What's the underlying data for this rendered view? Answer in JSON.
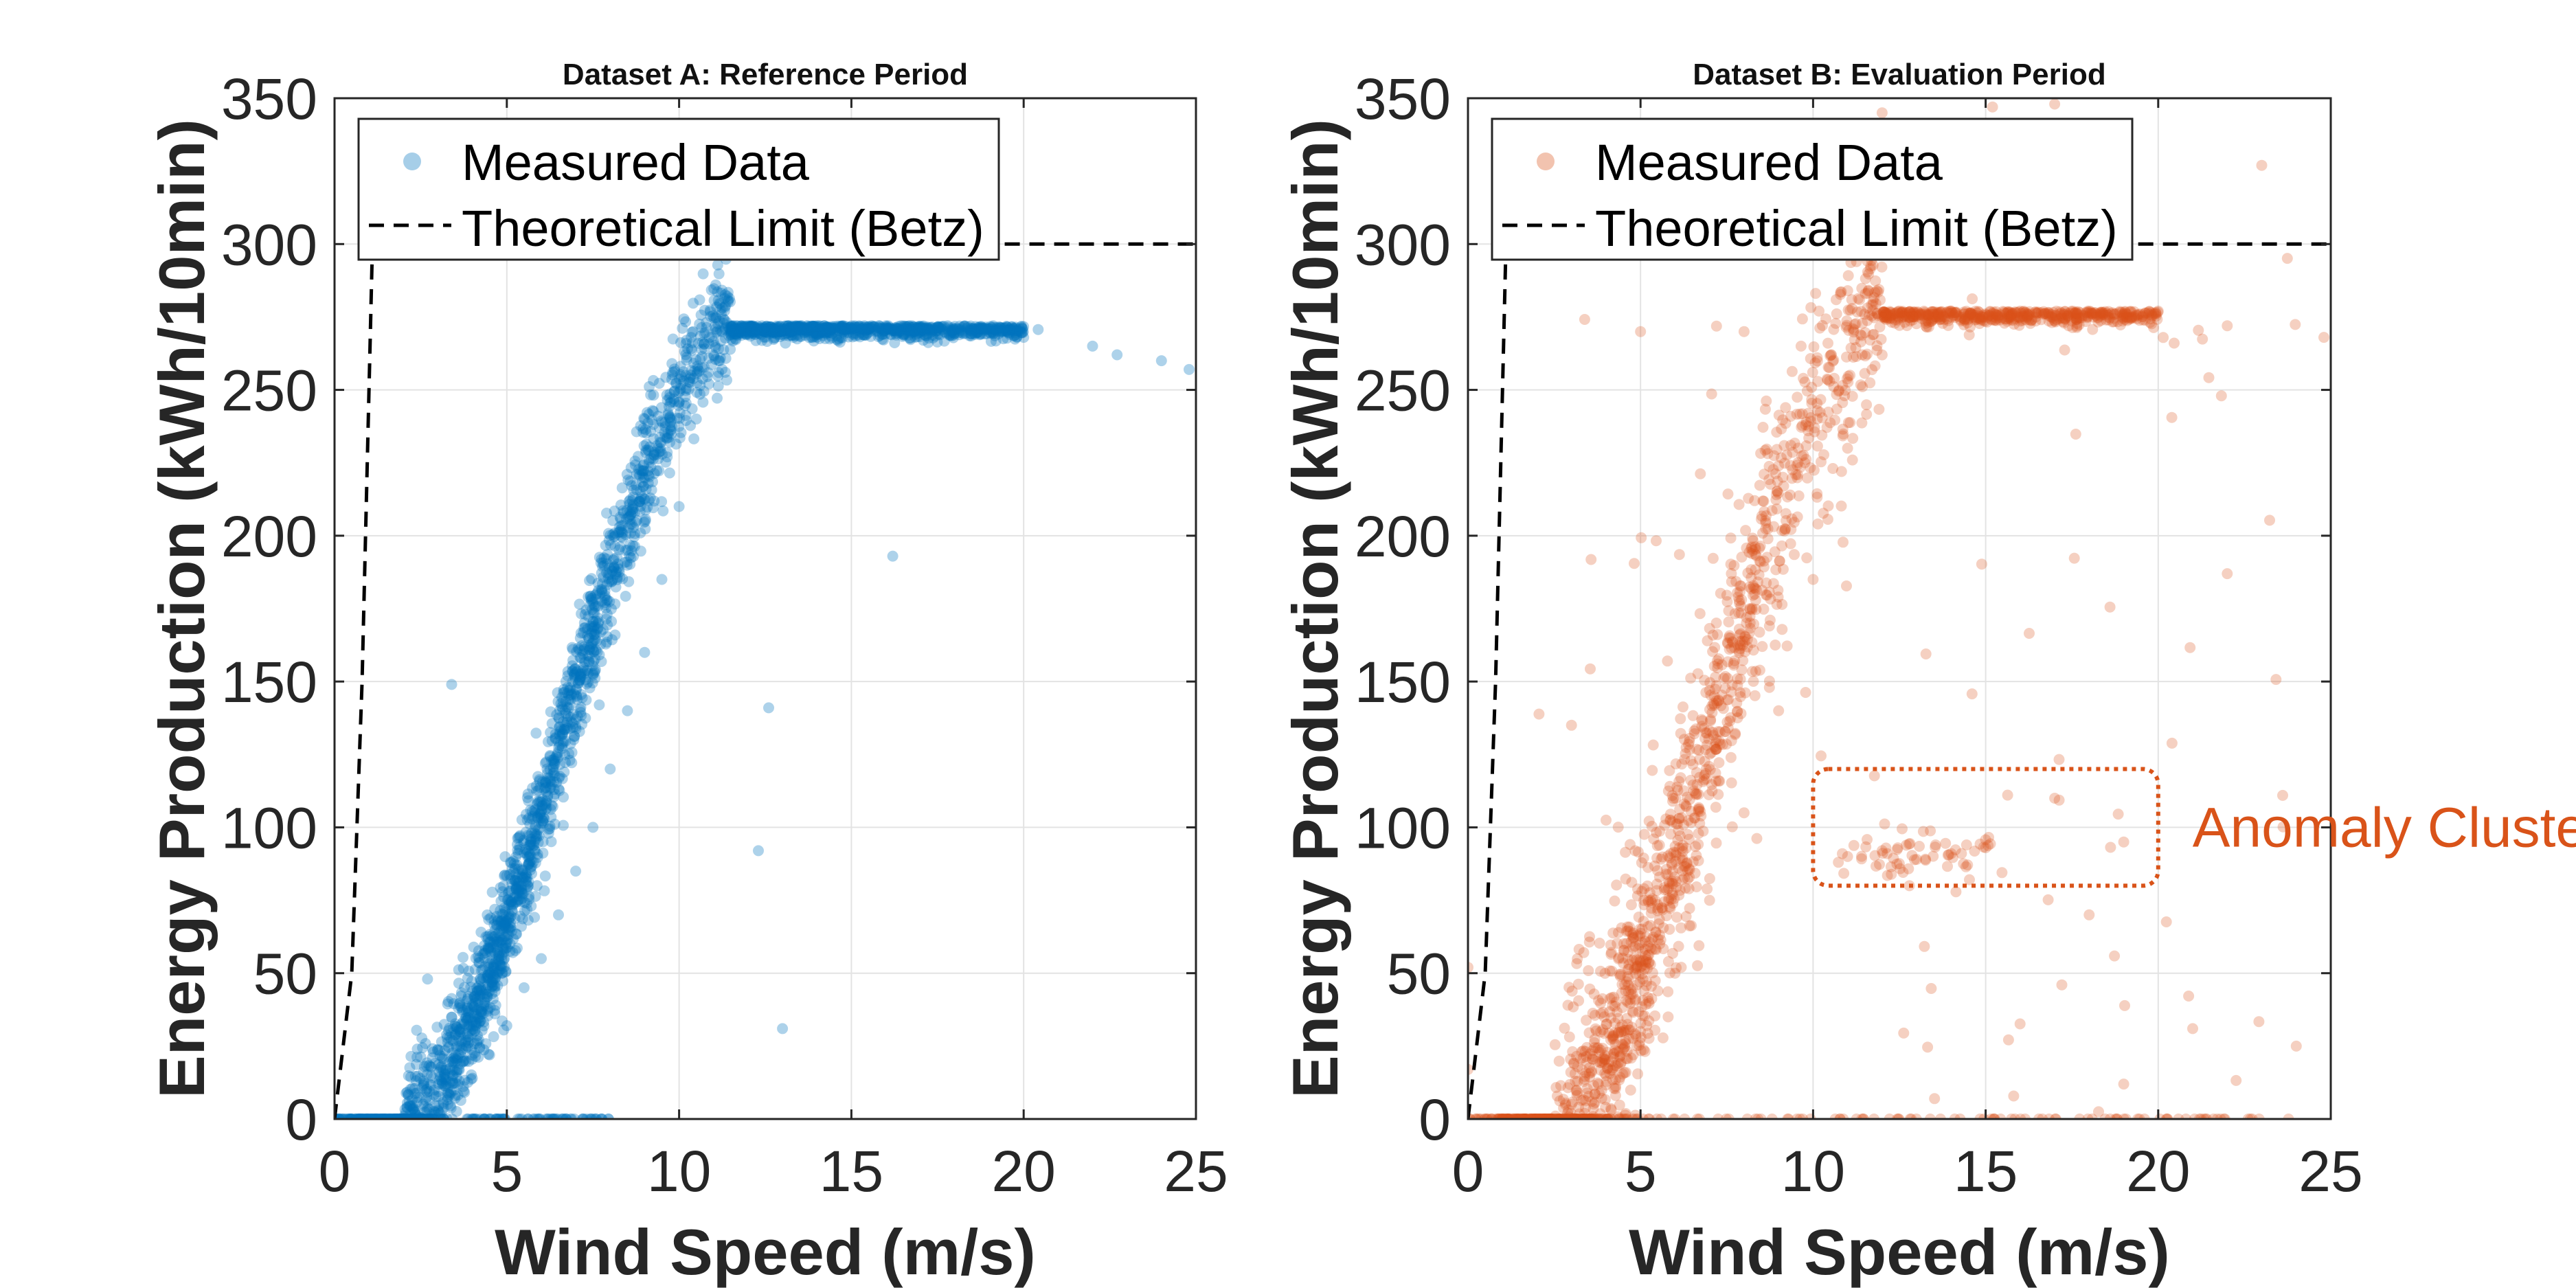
{
  "colors": {
    "series_a": "#0072BD",
    "series_b": "#D95319",
    "limit_line": "#000000",
    "grid": "#e3e3e3",
    "axis": "#262626"
  },
  "chart_data": [
    {
      "type": "scatter",
      "title": "Dataset A: Reference Period",
      "xlabel": "Wind Speed (m/s)",
      "ylabel": "Energy Production (kWh/10min)",
      "xlim": [
        0,
        25
      ],
      "ylim": [
        0,
        350
      ],
      "xticks": [
        0,
        5,
        10,
        15,
        20,
        25
      ],
      "yticks": [
        0,
        50,
        100,
        150,
        200,
        250,
        300,
        350
      ],
      "grid": true,
      "legend_position": "top-left",
      "power_curve": {
        "cut_in": 2.0,
        "rated_speed": 11.5,
        "rated_power": 272,
        "scatter": "low"
      },
      "series": [
        {
          "name": "Measured Data",
          "kind": "scatter",
          "color": "#0072BD",
          "representative_points": [
            [
              0,
              0
            ],
            [
              1.2,
              0
            ],
            [
              2.5,
              0.5
            ],
            [
              3,
              3
            ],
            [
              3.5,
              8
            ],
            [
              4,
              14
            ],
            [
              4.5,
              22
            ],
            [
              5,
              32
            ],
            [
              5.5,
              45
            ],
            [
              6,
              55
            ],
            [
              6.5,
              70
            ],
            [
              7,
              85
            ],
            [
              7.5,
              100
            ],
            [
              8,
              120
            ],
            [
              8.5,
              140
            ],
            [
              9,
              160
            ],
            [
              9.5,
              185
            ],
            [
              10,
              210
            ],
            [
              10.5,
              240
            ],
            [
              11,
              262
            ],
            [
              11.5,
              272
            ],
            [
              12,
              272
            ],
            [
              14,
              272
            ],
            [
              16,
              272
            ],
            [
              18,
              271
            ],
            [
              20,
              268
            ],
            [
              22,
              265
            ],
            [
              24,
              260
            ],
            [
              24.8,
              257
            ],
            [
              3.4,
              149
            ],
            [
              2.7,
              48
            ],
            [
              12.3,
              92
            ],
            [
              13,
              31
            ],
            [
              16.2,
              193
            ],
            [
              12.6,
              141
            ]
          ]
        },
        {
          "name": "Theoretical Limit (Betz)",
          "kind": "line",
          "style": "dashed",
          "color": "#000000",
          "points": [
            [
              0,
              0
            ],
            [
              0.5,
              50
            ],
            [
              0.8,
              150
            ],
            [
              1.1,
              300
            ],
            [
              25,
              300
            ]
          ]
        }
      ]
    },
    {
      "type": "scatter",
      "title": "Dataset B: Evaluation Period",
      "xlabel": "Wind Speed (m/s)",
      "ylabel": "Energy Production (kWh/10min)",
      "xlim": [
        0,
        25
      ],
      "ylim": [
        0,
        350
      ],
      "xticks": [
        0,
        5,
        10,
        15,
        20,
        25
      ],
      "yticks": [
        0,
        50,
        100,
        150,
        200,
        250,
        300,
        350
      ],
      "grid": true,
      "legend_position": "top-left",
      "power_curve": {
        "cut_in": 2.5,
        "rated_speed": 12.0,
        "rated_power": 277,
        "scatter": "high"
      },
      "series": [
        {
          "name": "Measured Data",
          "kind": "scatter",
          "color": "#D95319",
          "representative_points": [
            [
              0,
              0
            ],
            [
              2,
              0
            ],
            [
              3,
              5
            ],
            [
              4,
              15
            ],
            [
              5,
              30
            ],
            [
              6,
              50
            ],
            [
              7,
              75
            ],
            [
              8,
              105
            ],
            [
              9,
              140
            ],
            [
              10,
              185
            ],
            [
              11,
              230
            ],
            [
              12,
              262
            ],
            [
              12.5,
              277
            ],
            [
              14,
              277
            ],
            [
              16,
              277
            ],
            [
              18,
              277
            ],
            [
              20,
              277
            ],
            [
              22,
              272
            ],
            [
              24.8,
              268
            ],
            [
              0,
              52
            ],
            [
              0,
              17
            ],
            [
              5,
              270
            ],
            [
              3,
              135
            ],
            [
              12,
              345
            ],
            [
              15.2,
              347
            ],
            [
              17,
              348
            ],
            [
              23,
              327
            ],
            [
              22,
              187
            ],
            [
              21,
              31
            ],
            [
              24,
              25
            ],
            [
              11,
              90
            ],
            [
              12,
              92
            ],
            [
              13,
              89
            ],
            [
              14,
              91
            ],
            [
              15,
              93
            ],
            [
              17,
              110
            ],
            [
              19,
              95
            ],
            [
              18,
              70
            ],
            [
              19,
              12
            ],
            [
              8,
              270
            ],
            [
              9,
              224
            ]
          ]
        },
        {
          "name": "Theoretical Limit (Betz)",
          "kind": "line",
          "style": "dashed",
          "color": "#000000",
          "points": [
            [
              0,
              0
            ],
            [
              0.5,
              50
            ],
            [
              0.8,
              150
            ],
            [
              1.1,
              300
            ],
            [
              25,
              300
            ]
          ]
        }
      ],
      "annotations": [
        {
          "type": "box",
          "label": "Anomaly Cluster",
          "x_range": [
            10,
            20
          ],
          "y_range": [
            80,
            120
          ],
          "color": "#D95319"
        }
      ]
    }
  ]
}
